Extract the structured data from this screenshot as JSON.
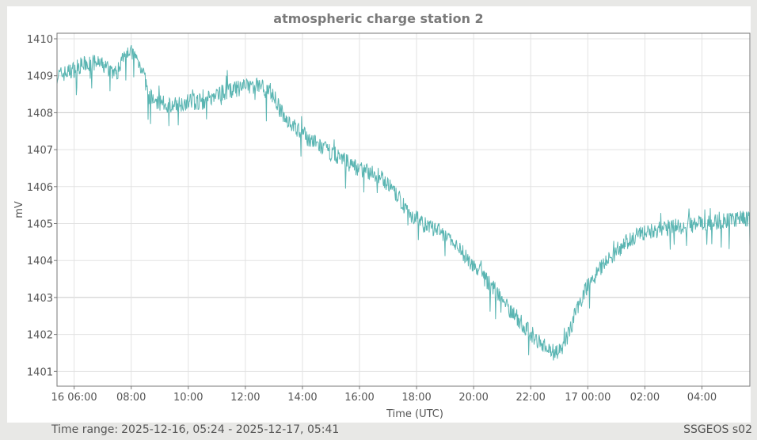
{
  "window": {
    "footer": {
      "time_range_label": "Time range:",
      "time_range_value": "2025-12-16, 05:24 - 2025-12-17, 05:41",
      "station_id": "SSGEOS s02"
    }
  },
  "colors": {
    "series": "#5ab5b2",
    "grid": "#e2e2e2",
    "grid_major": "#c8c8c8",
    "axis": "#777777",
    "title": "#7a7a7a",
    "background": "#e8e8e6"
  },
  "chart_data": {
    "type": "line",
    "title": "atmospheric charge station 2",
    "xlabel": "Time (UTC)",
    "ylabel": "mV",
    "ylim": [
      1400.6,
      1410.15
    ],
    "xlim_hours": [
      5.4,
      29.68
    ],
    "grid": true,
    "legend": null,
    "x_ticks": [
      {
        "hour": 6,
        "label": "16 06:00"
      },
      {
        "hour": 8,
        "label": "08:00"
      },
      {
        "hour": 10,
        "label": "10:00"
      },
      {
        "hour": 12,
        "label": "12:00"
      },
      {
        "hour": 14,
        "label": "14:00"
      },
      {
        "hour": 16,
        "label": "16:00"
      },
      {
        "hour": 18,
        "label": "18:00"
      },
      {
        "hour": 20,
        "label": "20:00"
      },
      {
        "hour": 22,
        "label": "22:00"
      },
      {
        "hour": 24,
        "label": "17 00:00"
      },
      {
        "hour": 26,
        "label": "02:00"
      },
      {
        "hour": 28,
        "label": "04:00"
      }
    ],
    "y_ticks": [
      1401,
      1402,
      1403,
      1404,
      1405,
      1406,
      1407,
      1408,
      1409,
      1410
    ],
    "series": [
      {
        "name": "mV",
        "x_hours": [
          5.4,
          5.8,
          6.3,
          6.8,
          7.2,
          7.5,
          7.8,
          8.1,
          8.4,
          8.6,
          9.0,
          9.5,
          10.0,
          10.5,
          11.0,
          11.5,
          12.0,
          12.5,
          12.9,
          13.3,
          13.8,
          14.3,
          14.8,
          15.3,
          15.8,
          16.3,
          16.8,
          17.3,
          17.8,
          18.3,
          18.8,
          19.3,
          19.8,
          20.3,
          20.8,
          21.3,
          21.8,
          22.3,
          22.8,
          23.1,
          23.4,
          23.7,
          24.0,
          24.5,
          25.0,
          25.5,
          26.0,
          26.5,
          27.0,
          27.5,
          28.0,
          28.5,
          29.0,
          29.68
        ],
        "values": [
          1409.0,
          1409.1,
          1409.3,
          1409.35,
          1409.2,
          1409.05,
          1409.75,
          1409.55,
          1409.2,
          1408.45,
          1408.25,
          1408.2,
          1408.3,
          1408.3,
          1408.5,
          1408.6,
          1408.7,
          1408.75,
          1408.6,
          1407.95,
          1407.55,
          1407.25,
          1407.0,
          1406.8,
          1406.55,
          1406.4,
          1406.25,
          1405.75,
          1405.25,
          1404.95,
          1404.8,
          1404.45,
          1404.05,
          1403.6,
          1403.15,
          1402.65,
          1402.2,
          1401.8,
          1401.5,
          1401.55,
          1402.2,
          1402.85,
          1403.35,
          1403.85,
          1404.25,
          1404.6,
          1404.75,
          1404.85,
          1404.9,
          1404.95,
          1405.0,
          1405.05,
          1405.1,
          1405.15
        ]
      }
    ]
  }
}
